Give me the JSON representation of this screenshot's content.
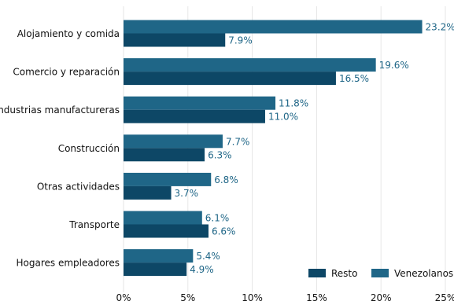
{
  "chart_data": {
    "type": "bar",
    "orientation": "horizontal",
    "categories": [
      "Alojamiento y comida",
      "Comercio y reparación",
      "Industrias manufactureras",
      "Construcción",
      "Otras actividades",
      "Transporte",
      "Hogares empleadores"
    ],
    "series": [
      {
        "name": "Venezolanos",
        "values": [
          23.2,
          19.6,
          11.8,
          7.7,
          6.8,
          6.1,
          5.4
        ],
        "labels": [
          "23.2%",
          "19.6%",
          "11.8%",
          "7.7%",
          "6.8%",
          "6.1%",
          "5.4%"
        ],
        "color": "#1f6687"
      },
      {
        "name": "Resto",
        "values": [
          7.9,
          16.5,
          11.0,
          6.3,
          3.7,
          6.6,
          4.9
        ],
        "labels": [
          "7.9%",
          "16.5%",
          "11.0%",
          "6.3%",
          "3.7%",
          "6.6%",
          "4.9%"
        ],
        "color": "#0d4766"
      }
    ],
    "xticks": [
      0,
      5,
      10,
      15,
      20,
      25
    ],
    "xtick_labels": [
      "0%",
      "5%",
      "10%",
      "15%",
      "20%",
      "25%"
    ],
    "xlim": [
      0,
      25
    ],
    "grid": "vertical",
    "legend": {
      "placement": "bottom-right",
      "order": [
        "Resto",
        "Venezolanos"
      ]
    },
    "label_color": "#1f6687"
  }
}
